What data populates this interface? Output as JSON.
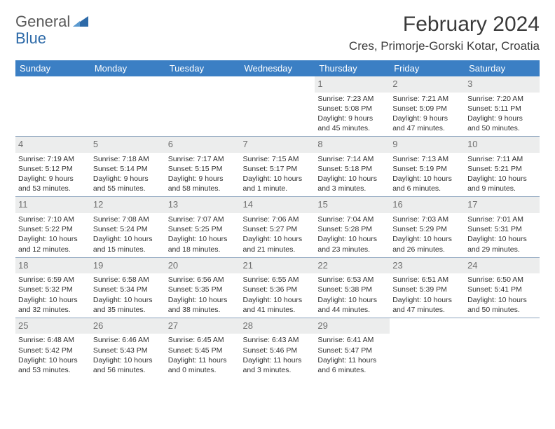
{
  "brand": {
    "word1": "General",
    "word2": "Blue",
    "tri_color": "#2d6aa8"
  },
  "title": "February 2024",
  "location": "Cres, Primorje-Gorski Kotar, Croatia",
  "colors": {
    "header_bg": "#3b7fc4",
    "header_text": "#ffffff",
    "sep_line": "#8fa6bf",
    "shaded_bg": "#eceded",
    "daynum_color": "#707070",
    "text_color": "#333333"
  },
  "typography": {
    "title_fontsize": 30,
    "location_fontsize": 17,
    "th_fontsize": 13,
    "daynum_fontsize": 13,
    "cell_fontsize": 10.5
  },
  "weekdays": [
    "Sunday",
    "Monday",
    "Tuesday",
    "Wednesday",
    "Thursday",
    "Friday",
    "Saturday"
  ],
  "weeks": [
    [
      {
        "blank": true
      },
      {
        "blank": true
      },
      {
        "blank": true
      },
      {
        "blank": true
      },
      {
        "day": "1",
        "sunrise": "Sunrise: 7:23 AM",
        "sunset": "Sunset: 5:08 PM",
        "daylight": "Daylight: 9 hours and 45 minutes."
      },
      {
        "day": "2",
        "sunrise": "Sunrise: 7:21 AM",
        "sunset": "Sunset: 5:09 PM",
        "daylight": "Daylight: 9 hours and 47 minutes."
      },
      {
        "day": "3",
        "sunrise": "Sunrise: 7:20 AM",
        "sunset": "Sunset: 5:11 PM",
        "daylight": "Daylight: 9 hours and 50 minutes."
      }
    ],
    [
      {
        "day": "4",
        "sunrise": "Sunrise: 7:19 AM",
        "sunset": "Sunset: 5:12 PM",
        "daylight": "Daylight: 9 hours and 53 minutes."
      },
      {
        "day": "5",
        "sunrise": "Sunrise: 7:18 AM",
        "sunset": "Sunset: 5:14 PM",
        "daylight": "Daylight: 9 hours and 55 minutes."
      },
      {
        "day": "6",
        "sunrise": "Sunrise: 7:17 AM",
        "sunset": "Sunset: 5:15 PM",
        "daylight": "Daylight: 9 hours and 58 minutes."
      },
      {
        "day": "7",
        "sunrise": "Sunrise: 7:15 AM",
        "sunset": "Sunset: 5:17 PM",
        "daylight": "Daylight: 10 hours and 1 minute."
      },
      {
        "day": "8",
        "sunrise": "Sunrise: 7:14 AM",
        "sunset": "Sunset: 5:18 PM",
        "daylight": "Daylight: 10 hours and 3 minutes."
      },
      {
        "day": "9",
        "sunrise": "Sunrise: 7:13 AM",
        "sunset": "Sunset: 5:19 PM",
        "daylight": "Daylight: 10 hours and 6 minutes."
      },
      {
        "day": "10",
        "sunrise": "Sunrise: 7:11 AM",
        "sunset": "Sunset: 5:21 PM",
        "daylight": "Daylight: 10 hours and 9 minutes."
      }
    ],
    [
      {
        "day": "11",
        "sunrise": "Sunrise: 7:10 AM",
        "sunset": "Sunset: 5:22 PM",
        "daylight": "Daylight: 10 hours and 12 minutes."
      },
      {
        "day": "12",
        "sunrise": "Sunrise: 7:08 AM",
        "sunset": "Sunset: 5:24 PM",
        "daylight": "Daylight: 10 hours and 15 minutes."
      },
      {
        "day": "13",
        "sunrise": "Sunrise: 7:07 AM",
        "sunset": "Sunset: 5:25 PM",
        "daylight": "Daylight: 10 hours and 18 minutes."
      },
      {
        "day": "14",
        "sunrise": "Sunrise: 7:06 AM",
        "sunset": "Sunset: 5:27 PM",
        "daylight": "Daylight: 10 hours and 21 minutes."
      },
      {
        "day": "15",
        "sunrise": "Sunrise: 7:04 AM",
        "sunset": "Sunset: 5:28 PM",
        "daylight": "Daylight: 10 hours and 23 minutes."
      },
      {
        "day": "16",
        "sunrise": "Sunrise: 7:03 AM",
        "sunset": "Sunset: 5:29 PM",
        "daylight": "Daylight: 10 hours and 26 minutes."
      },
      {
        "day": "17",
        "sunrise": "Sunrise: 7:01 AM",
        "sunset": "Sunset: 5:31 PM",
        "daylight": "Daylight: 10 hours and 29 minutes."
      }
    ],
    [
      {
        "day": "18",
        "sunrise": "Sunrise: 6:59 AM",
        "sunset": "Sunset: 5:32 PM",
        "daylight": "Daylight: 10 hours and 32 minutes."
      },
      {
        "day": "19",
        "sunrise": "Sunrise: 6:58 AM",
        "sunset": "Sunset: 5:34 PM",
        "daylight": "Daylight: 10 hours and 35 minutes."
      },
      {
        "day": "20",
        "sunrise": "Sunrise: 6:56 AM",
        "sunset": "Sunset: 5:35 PM",
        "daylight": "Daylight: 10 hours and 38 minutes."
      },
      {
        "day": "21",
        "sunrise": "Sunrise: 6:55 AM",
        "sunset": "Sunset: 5:36 PM",
        "daylight": "Daylight: 10 hours and 41 minutes."
      },
      {
        "day": "22",
        "sunrise": "Sunrise: 6:53 AM",
        "sunset": "Sunset: 5:38 PM",
        "daylight": "Daylight: 10 hours and 44 minutes."
      },
      {
        "day": "23",
        "sunrise": "Sunrise: 6:51 AM",
        "sunset": "Sunset: 5:39 PM",
        "daylight": "Daylight: 10 hours and 47 minutes."
      },
      {
        "day": "24",
        "sunrise": "Sunrise: 6:50 AM",
        "sunset": "Sunset: 5:41 PM",
        "daylight": "Daylight: 10 hours and 50 minutes."
      }
    ],
    [
      {
        "day": "25",
        "sunrise": "Sunrise: 6:48 AM",
        "sunset": "Sunset: 5:42 PM",
        "daylight": "Daylight: 10 hours and 53 minutes."
      },
      {
        "day": "26",
        "sunrise": "Sunrise: 6:46 AM",
        "sunset": "Sunset: 5:43 PM",
        "daylight": "Daylight: 10 hours and 56 minutes."
      },
      {
        "day": "27",
        "sunrise": "Sunrise: 6:45 AM",
        "sunset": "Sunset: 5:45 PM",
        "daylight": "Daylight: 11 hours and 0 minutes."
      },
      {
        "day": "28",
        "sunrise": "Sunrise: 6:43 AM",
        "sunset": "Sunset: 5:46 PM",
        "daylight": "Daylight: 11 hours and 3 minutes."
      },
      {
        "day": "29",
        "sunrise": "Sunrise: 6:41 AM",
        "sunset": "Sunset: 5:47 PM",
        "daylight": "Daylight: 11 hours and 6 minutes."
      },
      {
        "blank": true
      },
      {
        "blank": true
      }
    ]
  ]
}
